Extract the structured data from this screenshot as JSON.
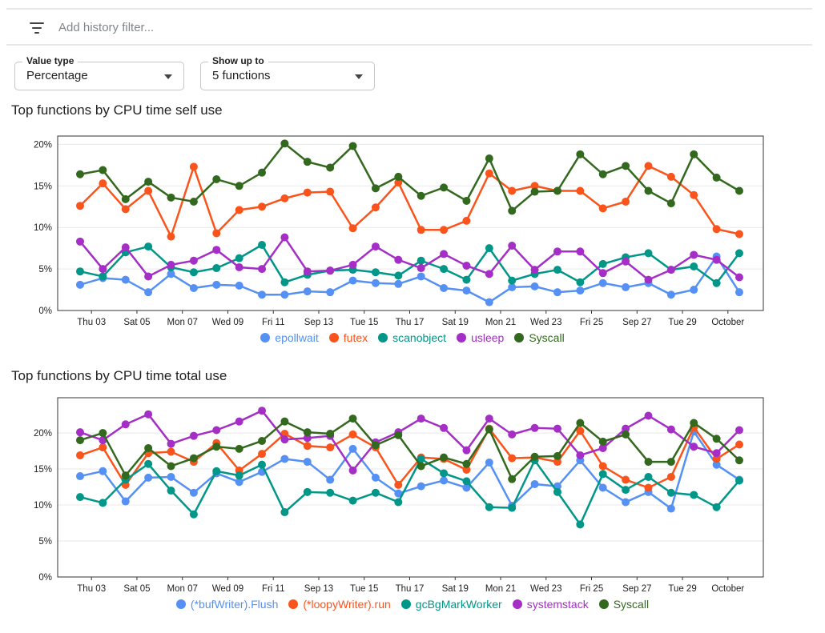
{
  "filter_bar": {
    "icon": "filter-list-icon",
    "placeholder": "Add history filter..."
  },
  "controls": {
    "value_type": {
      "label": "Value type",
      "value": "Percentage"
    },
    "show_up_to": {
      "label": "Show up to",
      "value": "5 functions"
    }
  },
  "chart_data": [
    {
      "type": "line",
      "title": "Top functions by CPU time self use",
      "x_labels": [
        "Thu 03",
        "Sat 05",
        "Mon 07",
        "Wed 09",
        "Fri 11",
        "Sep 13",
        "Tue 15",
        "Thu 17",
        "Sat 19",
        "Mon 21",
        "Wed 23",
        "Fri 25",
        "Sep 27",
        "Tue 29",
        "October"
      ],
      "yticks": [
        0,
        5,
        10,
        15,
        20
      ],
      "ytick_labels": [
        "0%",
        "5%",
        "10%",
        "15%",
        "20%"
      ],
      "ylim": [
        0,
        21
      ],
      "grid": true,
      "legend_position": "bottom",
      "series": [
        {
          "name": "epollwait",
          "color": "#5591f5",
          "values": [
            3.1,
            3.9,
            3.7,
            2.2,
            4.4,
            2.7,
            3.1,
            3.0,
            1.9,
            1.9,
            2.3,
            2.2,
            3.6,
            3.3,
            3.2,
            4.1,
            2.7,
            2.4,
            1.0,
            2.8,
            2.9,
            2.2,
            2.4,
            3.3,
            2.8,
            3.3,
            1.9,
            2.5,
            6.5,
            2.2
          ]
        },
        {
          "name": "futex",
          "color": "#fa541c",
          "values": [
            12.6,
            15.3,
            12.2,
            14.4,
            8.9,
            17.3,
            9.3,
            12.1,
            12.5,
            13.5,
            14.2,
            14.3,
            9.9,
            12.4,
            15.4,
            9.7,
            9.7,
            10.8,
            16.5,
            14.4,
            15.0,
            14.4,
            14.4,
            12.3,
            13.1,
            17.4,
            16.1,
            13.9,
            9.8,
            9.2
          ]
        },
        {
          "name": "scanobject",
          "color": "#009688",
          "values": [
            4.7,
            4.1,
            7.0,
            7.7,
            5.2,
            4.6,
            5.1,
            6.3,
            7.9,
            3.4,
            4.3,
            4.8,
            4.9,
            4.6,
            4.2,
            6.0,
            5.0,
            3.7,
            7.5,
            3.6,
            4.4,
            4.9,
            3.4,
            5.6,
            6.4,
            6.9,
            4.9,
            5.3,
            3.3,
            6.9
          ]
        },
        {
          "name": "usleep",
          "color": "#a42ec6",
          "values": [
            8.3,
            5.0,
            7.6,
            4.1,
            5.5,
            6.0,
            7.3,
            5.2,
            5.0,
            8.8,
            4.7,
            4.8,
            5.5,
            7.7,
            6.1,
            5.1,
            6.8,
            5.4,
            4.4,
            7.8,
            4.9,
            7.1,
            7.1,
            4.5,
            5.9,
            3.7,
            4.9,
            6.7,
            6.1,
            4.0
          ]
        },
        {
          "name": "Syscall",
          "color": "#33691e",
          "values": [
            16.4,
            16.9,
            13.4,
            15.5,
            13.6,
            13.1,
            15.8,
            15.0,
            16.6,
            20.1,
            17.9,
            17.2,
            19.8,
            14.7,
            16.1,
            13.8,
            14.8,
            13.2,
            18.3,
            12.0,
            14.3,
            14.4,
            18.8,
            16.4,
            17.4,
            14.4,
            12.9,
            18.8,
            16.0,
            14.4
          ]
        }
      ]
    },
    {
      "type": "line",
      "title": "Top functions by CPU time total use",
      "x_labels": [
        "Thu 03",
        "Sat 05",
        "Mon 07",
        "Wed 09",
        "Fri 11",
        "Sep 13",
        "Tue 15",
        "Thu 17",
        "Sat 19",
        "Mon 21",
        "Wed 23",
        "Fri 25",
        "Sep 27",
        "Tue 29",
        "October"
      ],
      "yticks": [
        0,
        5,
        10,
        15,
        20
      ],
      "ytick_labels": [
        "0%",
        "5%",
        "10%",
        "15%",
        "20%"
      ],
      "ylim": [
        0,
        24.9
      ],
      "grid": true,
      "legend_position": "bottom",
      "series": [
        {
          "name": "(*bufWriter).Flush",
          "color": "#5591f5",
          "values": [
            14.0,
            14.7,
            10.5,
            13.8,
            13.9,
            11.7,
            14.4,
            13.2,
            14.6,
            16.4,
            16.0,
            13.5,
            17.8,
            13.8,
            11.6,
            12.6,
            13.4,
            12.4,
            15.9,
            9.9,
            12.9,
            12.6,
            16.2,
            12.4,
            10.4,
            11.8,
            9.5,
            20.2,
            15.6,
            13.5
          ]
        },
        {
          "name": "(*loopyWriter).run",
          "color": "#fa541c",
          "values": [
            16.9,
            18.0,
            12.8,
            17.2,
            17.4,
            16.0,
            18.6,
            14.8,
            17.1,
            19.9,
            18.2,
            18.0,
            19.8,
            18.0,
            12.8,
            16.6,
            16.4,
            14.9,
            20.6,
            16.5,
            16.6,
            16.0,
            20.3,
            15.4,
            13.5,
            12.4,
            13.9,
            20.8,
            16.4,
            18.4
          ]
        },
        {
          "name": "gcBgMarkWorker",
          "color": "#009688",
          "values": [
            11.1,
            10.3,
            13.5,
            15.7,
            12.0,
            8.7,
            14.7,
            14.1,
            15.6,
            9.0,
            11.8,
            11.7,
            10.6,
            11.7,
            10.4,
            16.4,
            14.4,
            13.3,
            9.7,
            9.6,
            16.2,
            11.8,
            7.3,
            14.3,
            12.1,
            13.9,
            11.7,
            11.4,
            9.7,
            13.4
          ]
        },
        {
          "name": "systemstack",
          "color": "#a42ec6",
          "values": [
            20.1,
            19.0,
            21.2,
            22.6,
            18.5,
            19.6,
            20.4,
            21.6,
            23.1,
            19.1,
            19.3,
            19.6,
            14.8,
            18.7,
            20.1,
            22.0,
            20.7,
            17.6,
            22.0,
            19.8,
            20.7,
            20.6,
            16.9,
            17.9,
            20.6,
            22.4,
            20.5,
            18.1,
            17.2,
            20.4
          ]
        },
        {
          "name": "Syscall",
          "color": "#33691e",
          "values": [
            19.0,
            20.0,
            14.1,
            17.9,
            15.4,
            16.5,
            18.1,
            17.8,
            18.9,
            21.6,
            20.1,
            19.9,
            22.0,
            18.3,
            19.7,
            15.4,
            16.6,
            15.7,
            20.5,
            13.6,
            16.7,
            16.8,
            21.4,
            18.8,
            19.8,
            16.0,
            16.0,
            21.4,
            19.2,
            16.2
          ]
        }
      ]
    }
  ]
}
